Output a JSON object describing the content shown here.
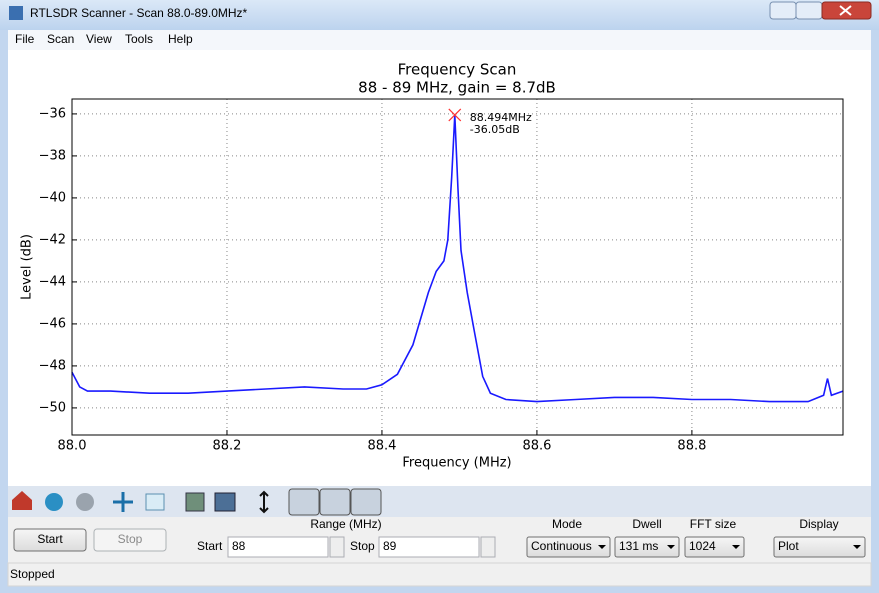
{
  "window": {
    "title": "RTLSDR Scanner - Scan 88.0-89.0MHz*"
  },
  "menu": [
    "File",
    "Scan",
    "View",
    "Tools",
    "Help"
  ],
  "chart_data": {
    "type": "line",
    "title": "Frequency Scan",
    "subtitle": "88 - 89 MHz, gain = 8.7dB",
    "x_label": "Frequency (MHz)",
    "y_label": "Level (dB)",
    "x": [
      88.0,
      88.01,
      88.02,
      88.05,
      88.1,
      88.15,
      88.2,
      88.25,
      88.3,
      88.35,
      88.38,
      88.4,
      88.42,
      88.44,
      88.46,
      88.47,
      88.48,
      88.485,
      88.49,
      88.494,
      88.498,
      88.502,
      88.51,
      88.52,
      88.53,
      88.54,
      88.56,
      88.6,
      88.65,
      88.7,
      88.75,
      88.8,
      88.85,
      88.9,
      88.95,
      88.97,
      88.975,
      88.98,
      88.995
    ],
    "values": [
      -48.3,
      -49.0,
      -49.2,
      -49.2,
      -49.3,
      -49.3,
      -49.2,
      -49.1,
      -49.0,
      -49.1,
      -49.1,
      -48.9,
      -48.4,
      -47.0,
      -44.5,
      -43.5,
      -43.0,
      -42.0,
      -39.0,
      -36.05,
      -39.5,
      -42.5,
      -44.5,
      -46.5,
      -48.5,
      -49.3,
      -49.6,
      -49.7,
      -49.6,
      -49.5,
      -49.5,
      -49.6,
      -49.6,
      -49.7,
      -49.7,
      -49.4,
      -48.6,
      -49.4,
      -49.2
    ],
    "color": "#1a1aff",
    "xlim": [
      88.0,
      88.995
    ],
    "ylim": [
      -51.29,
      -35.29
    ],
    "xticks": [
      {
        "value": 88.0,
        "label": "88.0"
      },
      88.2,
      88.4,
      88.6,
      88.8
    ],
    "yticks": [
      {
        "value": -50,
        "label": "−50"
      },
      {
        "value": -48,
        "label": "−48"
      },
      {
        "value": -46,
        "label": "−46"
      },
      {
        "value": -44,
        "label": "−44"
      },
      {
        "value": -42,
        "label": "−42"
      },
      {
        "value": -40,
        "label": "−40"
      },
      {
        "value": -38,
        "label": "−38"
      },
      {
        "value": -36,
        "label": "−36"
      }
    ],
    "grid": true,
    "annotation": {
      "x": 88.494,
      "y": -36.05,
      "color": "#ff3333",
      "label_lines": [
        "88.494MHz",
        "-36.05dB"
      ]
    }
  },
  "controls": {
    "start_button": "Start",
    "stop_button": "Stop",
    "range_label": "Range (MHz)",
    "start_label": "Start",
    "start_value": "88",
    "stop_label": "Stop",
    "stop_value": "89",
    "mode_label": "Mode",
    "mode_value": "Continuous",
    "dwell_label": "Dwell",
    "dwell_value": "131 ms",
    "fft_label": "FFT size",
    "fft_value": "1024",
    "display_label": "Display",
    "display_value": "Plot"
  },
  "status": "Stopped"
}
